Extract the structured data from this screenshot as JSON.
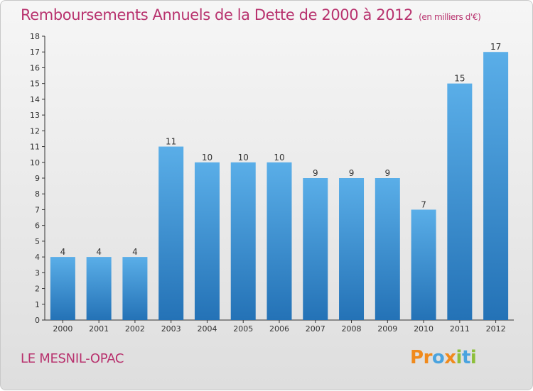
{
  "title": "Remboursements Annuels de la Dette de 2000 à 2012",
  "subtitle": "(en milliers d'€)",
  "footer_label": "LE MESNIL-OPAC",
  "logo": {
    "letters": [
      "P",
      "r",
      "o",
      "x",
      "i",
      "t",
      "i"
    ],
    "colors": [
      "#f08a1c",
      "#f08a1c",
      "#4aa3df",
      "#f08a1c",
      "#8dbf3a",
      "#4aa3df",
      "#8dbf3a"
    ]
  },
  "colors": {
    "bar_top": "#5aaee8",
    "bar_bottom": "#2472b6",
    "accent": "#b8326e",
    "axis": "#333333"
  },
  "chart_data": {
    "type": "bar",
    "title": "Remboursements Annuels de la Dette de 2000 à 2012",
    "subtitle": "(en milliers d'€)",
    "categories": [
      "2000",
      "2001",
      "2002",
      "2003",
      "2004",
      "2005",
      "2006",
      "2007",
      "2008",
      "2009",
      "2010",
      "2011",
      "2012"
    ],
    "values": [
      4,
      4,
      4,
      11,
      10,
      10,
      10,
      9,
      9,
      9,
      7,
      15,
      17
    ],
    "xlabel": "",
    "ylabel": "",
    "ylim": [
      0,
      18
    ],
    "yticks": [
      0,
      1,
      2,
      3,
      4,
      5,
      6,
      7,
      8,
      9,
      10,
      11,
      12,
      13,
      14,
      15,
      16,
      17,
      18
    ],
    "grid": false,
    "data_labels": true
  }
}
